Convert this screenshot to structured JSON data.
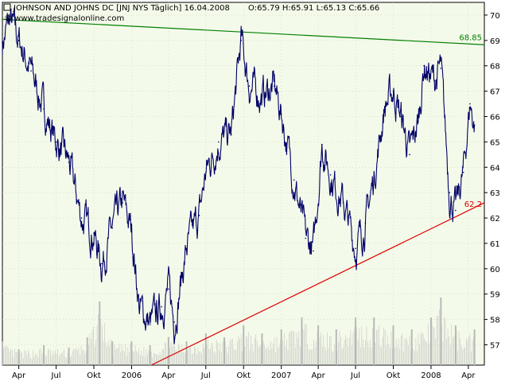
{
  "header": {
    "title": "JOHNSON AND JOHNS DC [JNJ NYS  Täglich] 16.04.2008",
    "ohlc": "O:65.79 H:65.91 L:65.13 C:65.66",
    "credit": "© www.tradesignalonline.com",
    "square_icon": "checkbox-square-icon"
  },
  "colors": {
    "plot_background": "#f4faea",
    "price_line": "#000066",
    "resistance_line": "#008000",
    "support_line": "#dd0000",
    "volume_bars": "#b8b8b8",
    "grid": "#c8d0c0"
  },
  "chart_data": {
    "type": "line",
    "title": "JOHNSON AND JOHNS DC [JNJ NYS  Täglich] 16.04.2008",
    "xlabel": "",
    "ylabel": "",
    "ylim": [
      56.2,
      70.5
    ],
    "grid": true,
    "x_ticks": [
      "Apr",
      "Jul",
      "Okt",
      "2006",
      "Apr",
      "Jul",
      "Okt",
      "2007",
      "Apr",
      "Jul",
      "Okt",
      "2008",
      "Apr"
    ],
    "x_tick_dates": [
      "2005-04-01",
      "2005-07-01",
      "2005-10-01",
      "2006-01-01",
      "2006-04-01",
      "2006-07-01",
      "2006-10-01",
      "2007-01-01",
      "2007-04-01",
      "2007-07-01",
      "2007-10-01",
      "2008-01-01",
      "2008-04-01"
    ],
    "x_range": [
      "2005-02-20",
      "2008-05-10"
    ],
    "y_ticks": [
      57,
      58,
      59,
      60,
      61,
      62,
      63,
      64,
      65,
      66,
      67,
      68,
      69,
      70
    ],
    "series": [
      {
        "type": "line",
        "x": [
          "2005-02-20",
          "2005-03-10",
          "2005-04-01",
          "2005-05-01",
          "2005-06-01",
          "2005-07-01",
          "2005-08-01",
          "2005-09-01",
          "2005-10-01",
          "2005-10-20",
          "2005-11-15",
          "2005-12-10",
          "2006-01-01",
          "2006-01-20",
          "2006-02-15",
          "2006-03-15",
          "2006-04-01",
          "2006-04-15",
          "2006-05-15",
          "2006-06-15",
          "2006-07-01",
          "2006-08-01",
          "2006-09-01",
          "2006-09-25",
          "2006-10-15",
          "2006-11-15",
          "2006-12-15",
          "2007-01-01",
          "2007-02-01",
          "2007-03-01",
          "2007-03-20",
          "2007-04-10",
          "2007-05-01",
          "2007-06-01",
          "2007-07-01",
          "2007-07-25",
          "2007-08-15",
          "2007-09-10",
          "2007-10-01",
          "2007-10-20",
          "2007-11-10",
          "2007-12-01",
          "2007-12-15",
          "2008-01-10",
          "2008-01-25",
          "2008-02-15",
          "2008-03-01",
          "2008-03-20",
          "2008-04-05",
          "2008-04-16"
        ],
        "values": [
          68.9,
          69.8,
          69.0,
          67.8,
          66.3,
          65.0,
          64.2,
          62.0,
          61.4,
          60.2,
          61.6,
          62.6,
          61.5,
          58.5,
          57.8,
          58.5,
          59.2,
          57.9,
          60.8,
          62.1,
          63.8,
          65.0,
          65.3,
          69.0,
          67.2,
          66.8,
          67.2,
          66.1,
          63.5,
          61.2,
          60.7,
          64.9,
          63.7,
          62.6,
          60.8,
          61.8,
          63.6,
          66.4,
          67.0,
          66.0,
          64.5,
          65.8,
          68.0,
          67.4,
          67.9,
          63.0,
          62.3,
          63.8,
          66.5,
          65.66
        ]
      },
      {
        "name": "",
        "type": "trendline",
        "x": [
          "2005-02-20",
          "2008-05-10"
        ],
        "values": [
          69.83,
          68.83
        ],
        "label": "68.85"
      },
      {
        "name": "",
        "type": "trendline",
        "x": [
          "2006-02-18",
          "2008-05-10"
        ],
        "values": [
          56.2,
          62.6
        ],
        "label": "62.2"
      },
      {
        "name": "",
        "type": "bar",
        "x": [
          "2005-02-20",
          "2005-04-01",
          "2005-06-01",
          "2005-08-01",
          "2005-09-15",
          "2005-10-15",
          "2005-11-15",
          "2006-01-01",
          "2006-02-15",
          "2006-04-01",
          "2006-05-15",
          "2006-07-01",
          "2006-08-15",
          "2006-10-01",
          "2006-11-15",
          "2007-01-01",
          "2007-02-20",
          "2007-04-01",
          "2007-05-15",
          "2007-07-01",
          "2007-08-15",
          "2007-10-01",
          "2007-11-15",
          "2008-01-01",
          "2008-01-25",
          "2008-03-01",
          "2008-04-16"
        ],
        "values": [
          0.3,
          0.2,
          0.25,
          0.22,
          0.35,
          0.8,
          0.3,
          0.3,
          0.25,
          0.35,
          0.3,
          0.4,
          0.35,
          0.5,
          0.4,
          0.45,
          0.6,
          0.5,
          0.45,
          0.6,
          0.6,
          0.5,
          0.45,
          0.6,
          0.85,
          0.5,
          0.45
        ]
      }
    ]
  }
}
